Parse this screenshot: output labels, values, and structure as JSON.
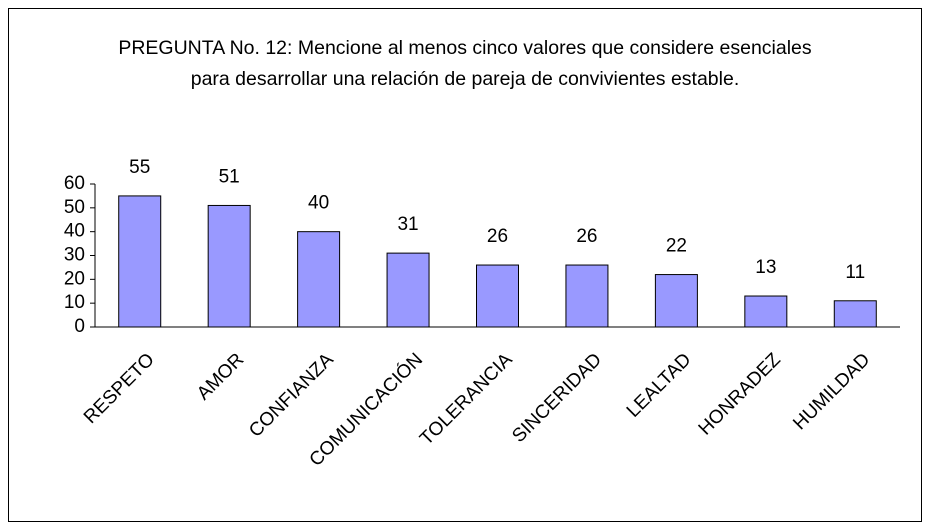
{
  "chart_data": {
    "type": "bar",
    "title": "PREGUNTA No. 12: Mencione al menos cinco valores que considere esenciales para desarrollar una relación de pareja de convivientes estable.",
    "categories": [
      "RESPETO",
      "AMOR",
      "CONFIANZA",
      "COMUNICACIÓN",
      "TOLERANCIA",
      "SINCERIDAD",
      "LEALTAD",
      "HONRADEZ",
      "HUMILDAD"
    ],
    "values": [
      55,
      51,
      40,
      31,
      26,
      26,
      22,
      13,
      11
    ],
    "color": "#9999ff",
    "ylim": [
      0,
      60
    ],
    "yticks": [
      0,
      10,
      20,
      30,
      40,
      50,
      60
    ]
  }
}
